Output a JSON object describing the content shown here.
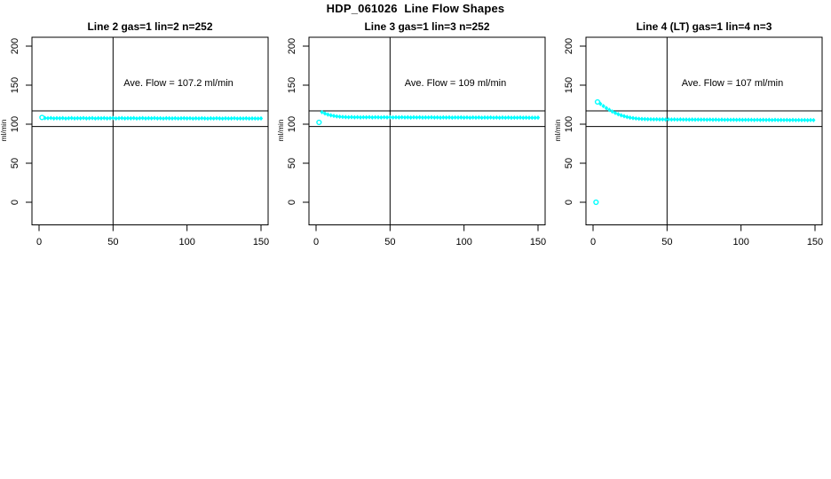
{
  "figure": {
    "title": "HDP_061026  Line Flow Shapes",
    "background": "#ffffff",
    "point_color": "#00ffff",
    "axis_color": "#000000",
    "text_color": "#000000"
  },
  "chart_data": [
    {
      "type": "scatter",
      "title": "Line 2 gas=1 lin=2 n=252",
      "annotation": "Ave. Flow =  107.2  ml/min",
      "ave_flow_ml_min": 107.2,
      "n_points": 252,
      "ylabel": "ml/min",
      "xlabel": "",
      "x_ticks": [
        0,
        50,
        100,
        150
      ],
      "y_ticks": [
        0,
        50,
        100,
        150,
        200
      ],
      "xlim": [
        -5,
        155
      ],
      "ylim": [
        -30,
        210
      ],
      "grid": false,
      "legend": "none",
      "vline_x": 50,
      "hlines_y": [
        117,
        97
      ],
      "marker": "diamond",
      "series": [
        {
          "name": "flow",
          "x_start": 2,
          "x_step": 2,
          "y": [
            108.3,
            107.8,
            107.6,
            107.9,
            107.4,
            107.7,
            107.5,
            107.8,
            107.3,
            107.6,
            107.8,
            107.4,
            107.7,
            107.5,
            107.9,
            107.4,
            107.6,
            107.8,
            107.3,
            107.7,
            107.5,
            107.8,
            107.4,
            107.6,
            107.9,
            107.3,
            107.6,
            107.8,
            107.4,
            107.7,
            107.5,
            107.8,
            107.3,
            107.6,
            107.8,
            107.4,
            107.7,
            107.5,
            107.8,
            107.4,
            107.6,
            107.3,
            107.7,
            107.5,
            107.4,
            107.6,
            107.3,
            107.5,
            107.7,
            107.4,
            107.6,
            107.2,
            107.5,
            107.3,
            107.6,
            107.4,
            107.2,
            107.5,
            107.3,
            107.6,
            107.4,
            107.2,
            107.5,
            107.3,
            107.4,
            107.6,
            107.2,
            107.4,
            107.3,
            107.5,
            107.2,
            107.4,
            107.3,
            107.2,
            107.4
          ]
        }
      ],
      "open_points": [
        [
          2,
          108.6
        ]
      ]
    },
    {
      "type": "scatter",
      "title": "Line 3 gas=1 lin=3 n=252",
      "annotation": "Ave. Flow =  109  ml/min",
      "ave_flow_ml_min": 109,
      "n_points": 252,
      "ylabel": "ml/min",
      "xlabel": "",
      "x_ticks": [
        0,
        50,
        100,
        150
      ],
      "y_ticks": [
        0,
        50,
        100,
        150,
        200
      ],
      "xlim": [
        -5,
        155
      ],
      "ylim": [
        -30,
        210
      ],
      "grid": false,
      "legend": "none",
      "vline_x": 50,
      "hlines_y": [
        117,
        97
      ],
      "marker": "diamond",
      "series": [
        {
          "name": "flow",
          "x_start": 2,
          "x_step": 2,
          "y": [
            102.3,
            115.4,
            113.7,
            112.4,
            111.4,
            110.6,
            110.0,
            109.6,
            109.3,
            109.1,
            108.9,
            109.1,
            108.8,
            109.0,
            108.7,
            108.9,
            108.8,
            109.0,
            108.7,
            108.9,
            108.8,
            108.6,
            108.9,
            108.7,
            108.9,
            108.6,
            108.8,
            108.7,
            108.9,
            108.6,
            108.8,
            108.5,
            108.8,
            108.6,
            108.8,
            108.5,
            108.7,
            108.6,
            108.8,
            108.5,
            108.7,
            108.4,
            108.7,
            108.5,
            108.7,
            108.4,
            108.6,
            108.5,
            108.7,
            108.4,
            108.6,
            108.3,
            108.6,
            108.4,
            108.6,
            108.3,
            108.5,
            108.4,
            108.6,
            108.3,
            108.5,
            108.2,
            108.5,
            108.3,
            108.5,
            108.2,
            108.4,
            108.3,
            108.5,
            108.2,
            108.4,
            108.2,
            108.3,
            108.2,
            108.4
          ]
        }
      ],
      "open_points": [
        [
          2,
          102.3
        ]
      ]
    },
    {
      "type": "scatter",
      "title": "Line 4 (LT) gas=1 lin=4 n=3",
      "annotation": "Ave. Flow =  107  ml/min",
      "ave_flow_ml_min": 107,
      "n_points": 3,
      "ylabel": "ml/min",
      "xlabel": "",
      "x_ticks": [
        0,
        50,
        100,
        150
      ],
      "y_ticks": [
        0,
        50,
        100,
        150,
        200
      ],
      "xlim": [
        -5,
        155
      ],
      "ylim": [
        -30,
        210
      ],
      "grid": false,
      "legend": "none",
      "vline_x": 50,
      "hlines_y": [
        117,
        97
      ],
      "marker": "diamond",
      "series": [
        {
          "name": "flow",
          "x_start": 3,
          "x_step": 2,
          "y": [
            128.5,
            126.0,
            123.2,
            120.6,
            118.3,
            116.2,
            114.4,
            112.8,
            111.4,
            110.2,
            109.2,
            108.4,
            107.8,
            107.3,
            106.9,
            106.7,
            106.5,
            106.4,
            106.3,
            106.2,
            106.3,
            106.1,
            106.2,
            106.0,
            106.2,
            106.0,
            106.1,
            105.9,
            106.1,
            105.9,
            106.0,
            105.8,
            106.0,
            105.8,
            105.9,
            105.8,
            105.9,
            105.7,
            105.9,
            105.7,
            105.8,
            105.6,
            105.8,
            105.6,
            105.7,
            105.6,
            105.7,
            105.5,
            105.7,
            105.5,
            105.6,
            105.5,
            105.6,
            105.4,
            105.6,
            105.4,
            105.5,
            105.4,
            105.5,
            105.3,
            105.5,
            105.3,
            105.4,
            105.3,
            105.4,
            105.2,
            105.4,
            105.2,
            105.3,
            105.2,
            105.3,
            105.1,
            105.3,
            105.2
          ]
        }
      ],
      "open_points": [
        [
          3,
          128.5
        ],
        [
          2,
          0
        ]
      ]
    }
  ]
}
